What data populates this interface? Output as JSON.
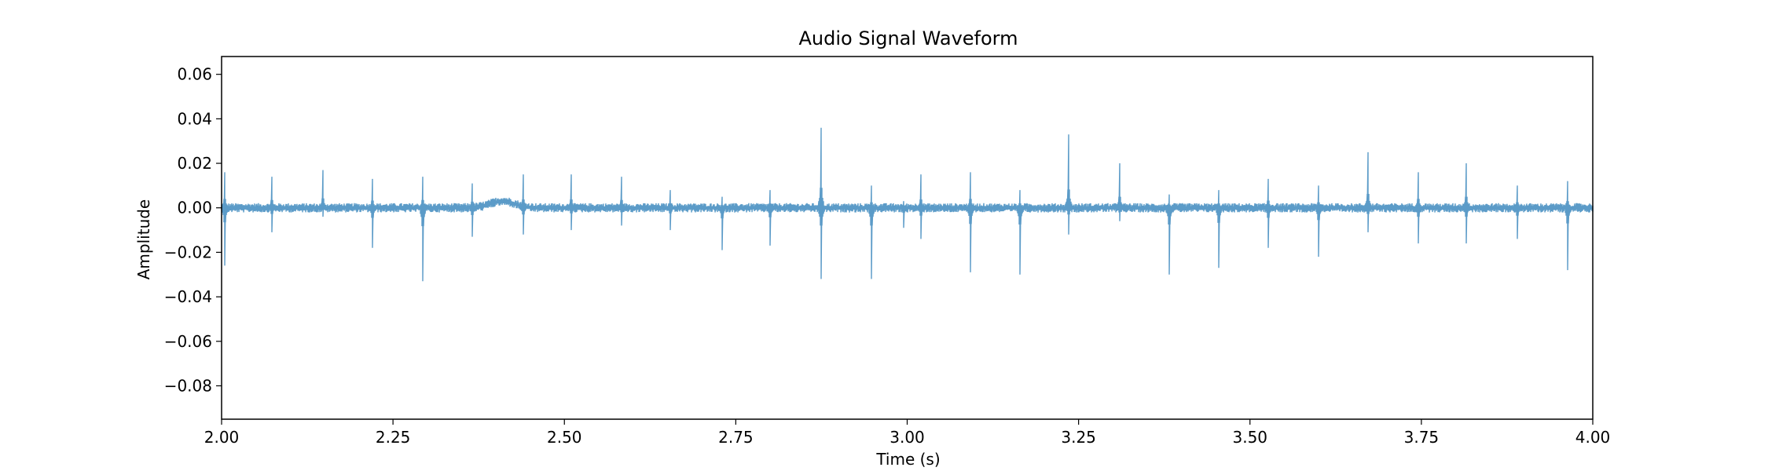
{
  "chart_data": {
    "type": "line",
    "title": "Audio Signal Waveform",
    "xlabel": "Time (s)",
    "ylabel": "Amplitude",
    "xlim": [
      2.0,
      4.0
    ],
    "ylim": [
      -0.095,
      0.068
    ],
    "x_ticks": [
      2.0,
      2.25,
      2.5,
      2.75,
      3.0,
      3.25,
      3.5,
      3.75,
      4.0
    ],
    "x_tick_labels": [
      "2.00",
      "2.25",
      "2.50",
      "2.75",
      "3.00",
      "3.25",
      "3.50",
      "3.75",
      "4.00"
    ],
    "y_ticks": [
      0.06,
      0.04,
      0.02,
      0.0,
      -0.02,
      -0.04,
      -0.06,
      -0.08
    ],
    "y_tick_labels": [
      "0.06",
      "0.04",
      "0.02",
      "0.00",
      "−0.02",
      "−0.04",
      "−0.06",
      "−0.08"
    ],
    "grid": false,
    "line_color": "#5b9bc8",
    "series": [
      {
        "baseline_noise_amplitude": 0.0015,
        "spikes": [
          {
            "x": 2.005,
            "max": 0.016,
            "min": -0.026
          },
          {
            "x": 2.073,
            "max": 0.014,
            "min": -0.011
          },
          {
            "x": 2.148,
            "max": 0.017,
            "min": -0.004
          },
          {
            "x": 2.22,
            "max": 0.013,
            "min": -0.018
          },
          {
            "x": 2.293,
            "max": 0.014,
            "min": -0.033
          },
          {
            "x": 2.366,
            "max": 0.011,
            "min": -0.013
          },
          {
            "x": 2.44,
            "max": 0.015,
            "min": -0.012
          },
          {
            "x": 2.51,
            "max": 0.015,
            "min": -0.01
          },
          {
            "x": 2.583,
            "max": 0.014,
            "min": -0.008
          },
          {
            "x": 2.655,
            "max": 0.008,
            "min": -0.01
          },
          {
            "x": 2.73,
            "max": 0.005,
            "min": -0.019
          },
          {
            "x": 2.8,
            "max": 0.008,
            "min": -0.017
          },
          {
            "x": 2.875,
            "max": 0.036,
            "min": -0.032
          },
          {
            "x": 2.948,
            "max": 0.01,
            "min": -0.032
          },
          {
            "x": 2.995,
            "max": 0.003,
            "min": -0.009
          },
          {
            "x": 3.02,
            "max": 0.015,
            "min": -0.014
          },
          {
            "x": 3.092,
            "max": 0.016,
            "min": -0.029
          },
          {
            "x": 3.165,
            "max": 0.008,
            "min": -0.03
          },
          {
            "x": 3.235,
            "max": 0.033,
            "min": -0.012
          },
          {
            "x": 3.31,
            "max": 0.02,
            "min": -0.006
          },
          {
            "x": 3.382,
            "max": 0.006,
            "min": -0.03
          },
          {
            "x": 3.455,
            "max": 0.008,
            "min": -0.027
          },
          {
            "x": 3.527,
            "max": 0.013,
            "min": -0.018
          },
          {
            "x": 3.6,
            "max": 0.01,
            "min": -0.022
          },
          {
            "x": 3.672,
            "max": 0.025,
            "min": -0.011
          },
          {
            "x": 3.745,
            "max": 0.016,
            "min": -0.016
          },
          {
            "x": 3.815,
            "max": 0.02,
            "min": -0.016
          },
          {
            "x": 3.89,
            "max": 0.01,
            "min": -0.014
          },
          {
            "x": 3.963,
            "max": 0.012,
            "min": -0.028
          }
        ]
      }
    ]
  }
}
